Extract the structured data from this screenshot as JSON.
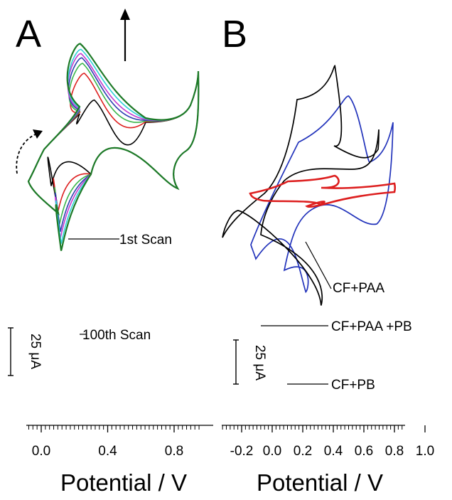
{
  "chart_data": [
    {
      "type": "line",
      "panel": "A",
      "xlabel": "Potential / V",
      "xlim": [
        -0.2,
        0.95
      ],
      "xticks": [
        0.0,
        0.4,
        0.8
      ],
      "xtick_labels": [
        "0.0",
        "0.4",
        "0.8"
      ],
      "scale_bar": {
        "value": 25,
        "unit": "μA",
        "label": "25 μA"
      },
      "annotations": [
        "1st Scan",
        "100th Scan"
      ],
      "series": [
        {
          "color": "#000000",
          "anodic_peak": {
            "x": 0.32,
            "y": 70
          },
          "cathodic_peak": {
            "x": 0.06,
            "y": -52
          }
        },
        {
          "color": "#dd1f1f",
          "anodic_peak": {
            "x": 0.26,
            "y": 108
          },
          "cathodic_peak": {
            "x": 0.1,
            "y": -89
          }
        },
        {
          "color": "#3ab54a",
          "anodic_peak": {
            "x": 0.25,
            "y": 122
          },
          "cathodic_peak": {
            "x": 0.11,
            "y": -106
          }
        },
        {
          "color": "#2b3fb0",
          "anodic_peak": {
            "x": 0.245,
            "y": 130
          },
          "cathodic_peak": {
            "x": 0.115,
            "y": -117
          }
        },
        {
          "color": "#c23bcf",
          "anodic_peak": {
            "x": 0.24,
            "y": 136
          },
          "cathodic_peak": {
            "x": 0.115,
            "y": -126
          }
        },
        {
          "color": "#2fd0d8",
          "anodic_peak": {
            "x": 0.24,
            "y": 142
          },
          "cathodic_peak": {
            "x": 0.12,
            "y": -134
          }
        },
        {
          "color": "#1d7a27",
          "anodic_peak": {
            "x": 0.235,
            "y": 150
          },
          "cathodic_peak": {
            "x": 0.12,
            "y": -144
          }
        }
      ]
    },
    {
      "type": "line",
      "panel": "B",
      "xlabel": "Potential / V",
      "xlim": [
        -0.4,
        1.0
      ],
      "xticks": [
        -0.2,
        0.0,
        0.2,
        0.4,
        0.6,
        0.8,
        1.0
      ],
      "xtick_labels": [
        "-0.2",
        "0.0",
        "0.2",
        "0.4",
        "0.6",
        "0.8",
        "1.0"
      ],
      "scale_bar": {
        "value": 25,
        "unit": "μA",
        "label": "25 μA"
      },
      "series": [
        {
          "name": "CF+PAA",
          "color": "#dd1f1f",
          "anodic_peak": {
            "x": 0.41,
            "y": 22
          },
          "cathodic_peak": {
            "x": 0.31,
            "y": -20
          }
        },
        {
          "name": "CF+PAA +PB",
          "color": "#000000",
          "anodic_peak": {
            "x": 0.41,
            "y": 185
          },
          "cathodic_peak": {
            "x": 0.32,
            "y": -170
          }
        },
        {
          "name": "CF+PB",
          "color": "#2233bb",
          "anodic_peak": {
            "x": 0.5,
            "y": 140
          },
          "cathodic_peak": {
            "x": 0.22,
            "y": -150
          }
        }
      ]
    }
  ],
  "labels": {
    "panel_a": "A",
    "panel_b": "B",
    "arrow": "↑"
  }
}
